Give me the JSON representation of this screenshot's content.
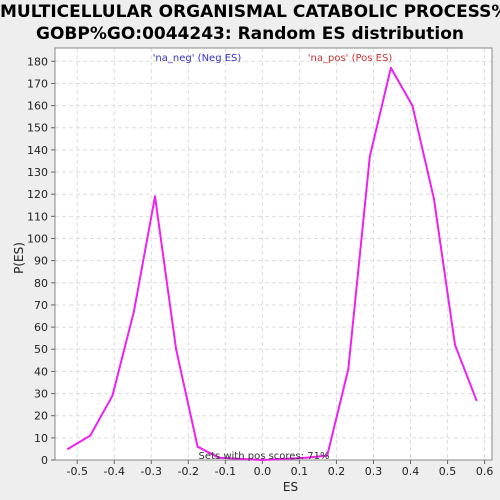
{
  "chart_data": {
    "type": "line",
    "title_lines": [
      "MULTICELLULAR ORGANISMAL CATABOLIC PROCESS%",
      "GOBP%GO:0044243: Random ES distribution"
    ],
    "xlabel": "ES",
    "ylabel": "P(ES)",
    "xlim": [
      -0.56,
      0.62
    ],
    "ylim": [
      0,
      186
    ],
    "xticks": [
      -0.5,
      -0.4,
      -0.3,
      -0.2,
      -0.1,
      0.0,
      0.1,
      0.2,
      0.3,
      0.4,
      0.5,
      0.6
    ],
    "xtick_labels": [
      "-0.5",
      "-0.4",
      "-0.3",
      "-0.2",
      "-0.1",
      "0.0",
      "0.1",
      "0.2",
      "0.3",
      "0.4",
      "0.5",
      "0.6"
    ],
    "yticks": [
      0,
      10,
      20,
      30,
      40,
      50,
      60,
      70,
      80,
      90,
      100,
      110,
      120,
      130,
      140,
      150,
      160,
      170,
      180
    ],
    "ytick_labels": [
      "0",
      "10",
      "20",
      "30",
      "40",
      "50",
      "60",
      "70",
      "80",
      "90",
      "100",
      "110",
      "120",
      "130",
      "140",
      "150",
      "160",
      "170",
      "180"
    ],
    "grid": true,
    "series": [
      {
        "color": "#ee22ee",
        "x": [
          -0.525,
          -0.465,
          -0.405,
          -0.347,
          -0.29,
          -0.233,
          -0.175,
          -0.117,
          0.0,
          0.117,
          0.175,
          0.232,
          0.29,
          0.347,
          0.405,
          0.463,
          0.52,
          0.578
        ],
        "y": [
          5,
          11,
          29,
          67,
          119,
          50,
          6,
          1,
          0,
          1,
          2,
          41,
          137,
          177,
          160,
          118,
          52,
          27
        ]
      }
    ],
    "annotations": {
      "neg_label": "'na_neg' (Neg ES)",
      "pos_label": "'na_pos' (Pos ES)",
      "footer": "Sets with pos scores: 71%"
    },
    "colors": {
      "neg_label": "#3333cc",
      "pos_label": "#cc3333",
      "line": "#ee22ee",
      "grid": "#dddddd",
      "plot_bg": "#ffffff",
      "page_bg": "#eeeeee"
    }
  }
}
